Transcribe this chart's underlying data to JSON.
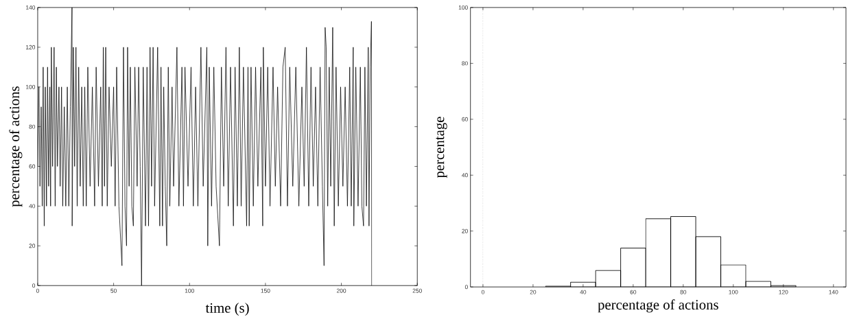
{
  "chart_data": [
    {
      "type": "line",
      "xlabel": "time (s)",
      "ylabel": "percentage of actions",
      "color": "#000000",
      "x": [
        0,
        0.8,
        1.5,
        2.3,
        3,
        3.6,
        4.3,
        5,
        5.8,
        6.5,
        7.2,
        8,
        8.5,
        9,
        9.8,
        10.8,
        11.5,
        12.3,
        13,
        14,
        14.8,
        15.7,
        16.5,
        17.5,
        18.5,
        19.5,
        20.5,
        21.5,
        22.6,
        22.7,
        23.5,
        24.3,
        25.2,
        26,
        27,
        28,
        29,
        30,
        31,
        32,
        33,
        34.5,
        36,
        37.5,
        38.5,
        40,
        41.5,
        42.5,
        43.2,
        44,
        44.8,
        45.8,
        47,
        48.5,
        50,
        51,
        52,
        53.5,
        55.5,
        56.5,
        57.5,
        58.5,
        59.2,
        60.2,
        61,
        62,
        63,
        64,
        65.5,
        66.5,
        67.5,
        68.4,
        69.5,
        71,
        72,
        73,
        74,
        75,
        76,
        77,
        79,
        80.4,
        81.2,
        82.2,
        83,
        84,
        85,
        86,
        87,
        88.5,
        89.5,
        91.7,
        93,
        95,
        96,
        97,
        99,
        101,
        102.5,
        104,
        105.5,
        107.5,
        109,
        111.4,
        112,
        113,
        114.5,
        116,
        117.5,
        119.7,
        121,
        122.5,
        124,
        125.5,
        127,
        128.9,
        130,
        131.5,
        132.8,
        134,
        135.5,
        137.6,
        138.5,
        139.3,
        140.5,
        142,
        143.5,
        145,
        147,
        148.2,
        148.6,
        150,
        151.5,
        153,
        155,
        156.5,
        158,
        160,
        161.5,
        163,
        164.5,
        166,
        168,
        170,
        172,
        174,
        175.5,
        177,
        178.5,
        180,
        181.5,
        183,
        184.5,
        186,
        187.5,
        188.6,
        189.3,
        190,
        191,
        192,
        193,
        194.3,
        195.3,
        196.5,
        198,
        199.5,
        201,
        202.5,
        204,
        205.5,
        206.5,
        207.8,
        208.2,
        209.5,
        211,
        212.5,
        213.5,
        214.6,
        215.5,
        216.5,
        217.7,
        218.2,
        219,
        219.8,
        220
      ],
      "values": [
        60,
        100,
        50,
        90,
        40,
        110,
        30,
        100,
        40,
        110,
        50,
        100,
        40,
        120,
        60,
        120,
        40,
        110,
        60,
        100,
        50,
        100,
        40,
        90,
        40,
        100,
        40,
        90,
        140,
        30,
        120,
        60,
        120,
        40,
        110,
        50,
        100,
        40,
        100,
        40,
        110,
        50,
        100,
        40,
        110,
        50,
        100,
        40,
        120,
        50,
        120,
        40,
        100,
        60,
        100,
        40,
        110,
        40,
        10,
        120,
        40,
        20,
        120,
        50,
        110,
        40,
        30,
        110,
        50,
        110,
        60,
        0,
        110,
        30,
        110,
        30,
        120,
        50,
        120,
        40,
        120,
        30,
        110,
        30,
        100,
        50,
        20,
        110,
        40,
        100,
        50,
        120,
        40,
        110,
        40,
        110,
        50,
        110,
        40,
        100,
        40,
        120,
        50,
        120,
        20,
        110,
        40,
        110,
        50,
        20,
        110,
        50,
        120,
        40,
        110,
        30,
        110,
        40,
        120,
        40,
        110,
        30,
        110,
        30,
        110,
        40,
        110,
        50,
        110,
        30,
        120,
        50,
        110,
        40,
        110,
        50,
        100,
        40,
        110,
        120,
        40,
        110,
        50,
        110,
        40,
        100,
        50,
        120,
        40,
        110,
        50,
        100,
        40,
        110,
        50,
        10,
        130,
        120,
        40,
        110,
        50,
        130,
        30,
        110,
        40,
        100,
        50,
        100,
        40,
        110,
        40,
        120,
        30,
        110,
        40,
        110,
        40,
        30,
        110,
        40,
        120,
        30,
        110,
        133,
        0
      ],
      "xlim": [
        0,
        250
      ],
      "ylim": [
        0,
        140
      ],
      "xticks": [
        0,
        50,
        100,
        150,
        200,
        250
      ],
      "yticks": [
        0,
        20,
        40,
        60,
        80,
        100,
        120,
        140
      ]
    },
    {
      "type": "histogram",
      "xlabel": "percentage of actions",
      "ylabel": "percentage",
      "color": "#000000",
      "bins": [
        25,
        35,
        45,
        55,
        65,
        75,
        85,
        95,
        105,
        115,
        125
      ],
      "values": [
        0.3,
        1.7,
        5.9,
        13.9,
        24.4,
        25.2,
        18.0,
        7.9,
        2.0,
        0.5
      ],
      "xlim": [
        -5,
        145
      ],
      "ylim": [
        0,
        100
      ],
      "xticks": [
        0,
        20,
        40,
        60,
        80,
        100,
        120,
        140
      ],
      "yticks": [
        0,
        20,
        40,
        60,
        80,
        100
      ],
      "ref_lines": [
        {
          "axis": "x",
          "value": 0,
          "line_style": "dotted",
          "color": "#000000"
        }
      ]
    }
  ]
}
